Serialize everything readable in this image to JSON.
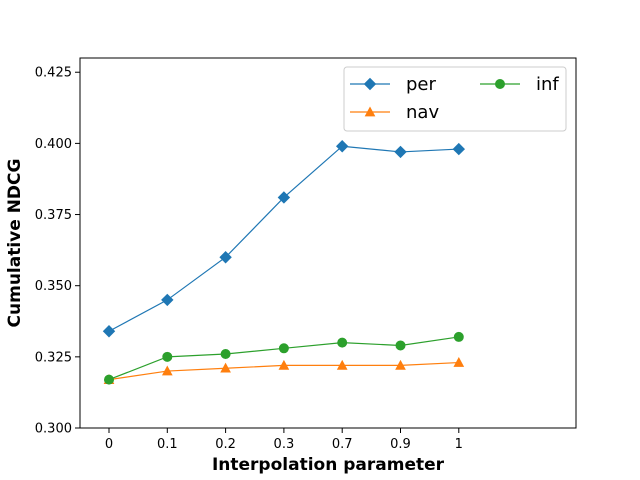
{
  "chart_data": {
    "type": "line",
    "xlabel": "Interpolation parameter",
    "ylabel": "Cumulative NDCG",
    "categories": [
      "0",
      "0.1",
      "0.2",
      "0.3",
      "0.7",
      "0.9",
      "1"
    ],
    "ylim": [
      0.3,
      0.43
    ],
    "yticks": [
      "0.300",
      "0.325",
      "0.350",
      "0.375",
      "0.400",
      "0.425"
    ],
    "grid": false,
    "legend_placement": "top-right",
    "series": [
      {
        "name": "per",
        "color": "#1f77b4",
        "marker": "diamond",
        "values": [
          0.334,
          0.345,
          0.36,
          0.381,
          0.399,
          0.397,
          0.398
        ]
      },
      {
        "name": "nav",
        "color": "#ff7f0e",
        "marker": "triangle",
        "values": [
          0.317,
          0.32,
          0.321,
          0.322,
          0.322,
          0.322,
          0.323
        ]
      },
      {
        "name": "inf",
        "color": "#2ca02c",
        "marker": "circle",
        "values": [
          0.317,
          0.325,
          0.326,
          0.328,
          0.33,
          0.329,
          0.332
        ]
      }
    ]
  }
}
